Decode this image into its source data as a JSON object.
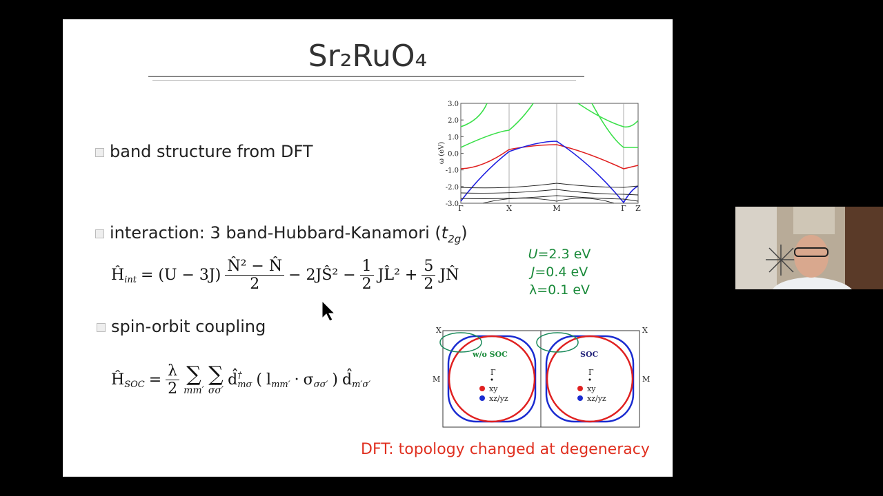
{
  "title": "Sr₂RuO₄",
  "bullets": [
    {
      "parts": [
        "band structure from DFT"
      ]
    },
    {
      "parts": [
        "interaction: 3 band-Hubbard-Kanamori (",
        "t",
        "2g",
        ")"
      ]
    },
    {
      "parts": [
        "spin-orbit coupling"
      ]
    }
  ],
  "formulas": {
    "interaction": [
      {
        "base": "Ĥ",
        "sub": "int"
      },
      "= (U − 3J)",
      {
        "num": "N̂² − N̂",
        "den": "2"
      },
      "− 2JŜ² −",
      {
        "num": "1",
        "den": "2"
      },
      "JL̂² +",
      {
        "num": "5",
        "den": "2"
      },
      "JN̂"
    ],
    "soc": [
      {
        "base": "Ĥ",
        "sub": "SOC"
      },
      "=",
      {
        "num": "λ",
        "den": "2"
      },
      {
        "base": "∑",
        "under": "mm′"
      },
      {
        "base": "∑",
        "under": "σσ′"
      },
      {
        "base": "d̂",
        "sup": "†",
        "sub": "mσ"
      },
      "(",
      {
        "base": "l",
        "sub": "mm′"
      },
      "·",
      {
        "base": "σ",
        "sub": "σσ′"
      },
      ")",
      {
        "base": "d̂",
        "sub": "m′σ′"
      }
    ]
  },
  "parameters": [
    {
      "symbol": "U",
      "value": "=2.3 eV"
    },
    {
      "symbol": "J",
      "value": "=0.4 eV"
    },
    {
      "symbol": "λ",
      "value": "=0.1 eV"
    }
  ],
  "band_plot": {
    "y_label": "ω (eV)",
    "y_ticks": [
      "3.0",
      "2.0",
      "1.0",
      "0.0",
      "-1.0",
      "-2.0",
      "-3.0"
    ],
    "x_ticks": [
      "Γ",
      "X",
      "M",
      "Γ",
      "Z"
    ]
  },
  "fermi_plot": {
    "corner_labels": [
      "X",
      "X"
    ],
    "side_labels": [
      "M",
      "M"
    ],
    "panels": [
      {
        "title": "w/o SOC",
        "center": "Γ",
        "legend": [
          "xy",
          "xz/yz"
        ]
      },
      {
        "title": "SOC",
        "center": "Γ",
        "legend": [
          "xy",
          "xz/yz"
        ]
      }
    ]
  },
  "conclusion": "DFT: topology changed at degeneracy"
}
